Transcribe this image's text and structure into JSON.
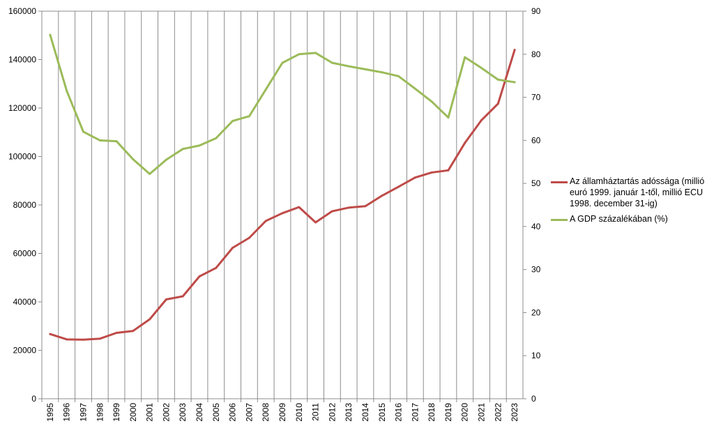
{
  "chart_data": {
    "type": "line",
    "title": "",
    "xlabel": "",
    "ylabel": "",
    "x": [
      "1995",
      "1996",
      "1997",
      "1998",
      "1999",
      "2000",
      "2001",
      "2002",
      "2003",
      "2004",
      "2005",
      "2006",
      "2007",
      "2008",
      "2009",
      "2010",
      "2011",
      "2012",
      "2013",
      "2014",
      "2015",
      "2016",
      "2017",
      "2018",
      "2019",
      "2020",
      "2021",
      "2022",
      "2023"
    ],
    "y_left": {
      "ylim": [
        0,
        160000
      ],
      "ticks": [
        0,
        20000,
        40000,
        60000,
        80000,
        100000,
        120000,
        140000,
        160000
      ]
    },
    "y_right": {
      "ylim": [
        0,
        90
      ],
      "ticks": [
        0,
        10,
        20,
        30,
        40,
        50,
        60,
        70,
        80,
        90
      ]
    },
    "grid": "vertical",
    "legend_position": "right",
    "series": [
      {
        "name": "Az államháztartás adóssága (millió euró 1999. január 1-től, millió ECU 1998. december 31-ig)",
        "axis": "left",
        "color": "#be4b48",
        "values": [
          26700,
          24500,
          24400,
          24800,
          27200,
          28000,
          32800,
          41000,
          42300,
          50500,
          54000,
          62300,
          66400,
          73400,
          76600,
          79100,
          72800,
          77400,
          78900,
          79500,
          83800,
          87500,
          91300,
          93400,
          94300,
          105600,
          115000,
          121800,
          144000
        ]
      },
      {
        "name": "A GDP százalékában (%)",
        "axis": "right",
        "color": "#9bbb59",
        "values": [
          84.5,
          71.5,
          62.0,
          60.0,
          59.8,
          55.6,
          52.2,
          55.5,
          58.0,
          58.8,
          60.5,
          64.5,
          65.6,
          71.8,
          78.0,
          80.0,
          80.3,
          78.0,
          77.2,
          76.5,
          75.8,
          74.9,
          72.0,
          69.0,
          65.3,
          79.3,
          76.8,
          74.1,
          73.5
        ]
      }
    ]
  },
  "legend": {
    "items": [
      {
        "label": "Az államháztartás adóssága (millió euró 1999. január 1-től, millió ECU 1998. december 31-ig)",
        "color": "#be4b48"
      },
      {
        "label": "A GDP százalékában (%)",
        "color": "#9bbb59"
      }
    ]
  }
}
